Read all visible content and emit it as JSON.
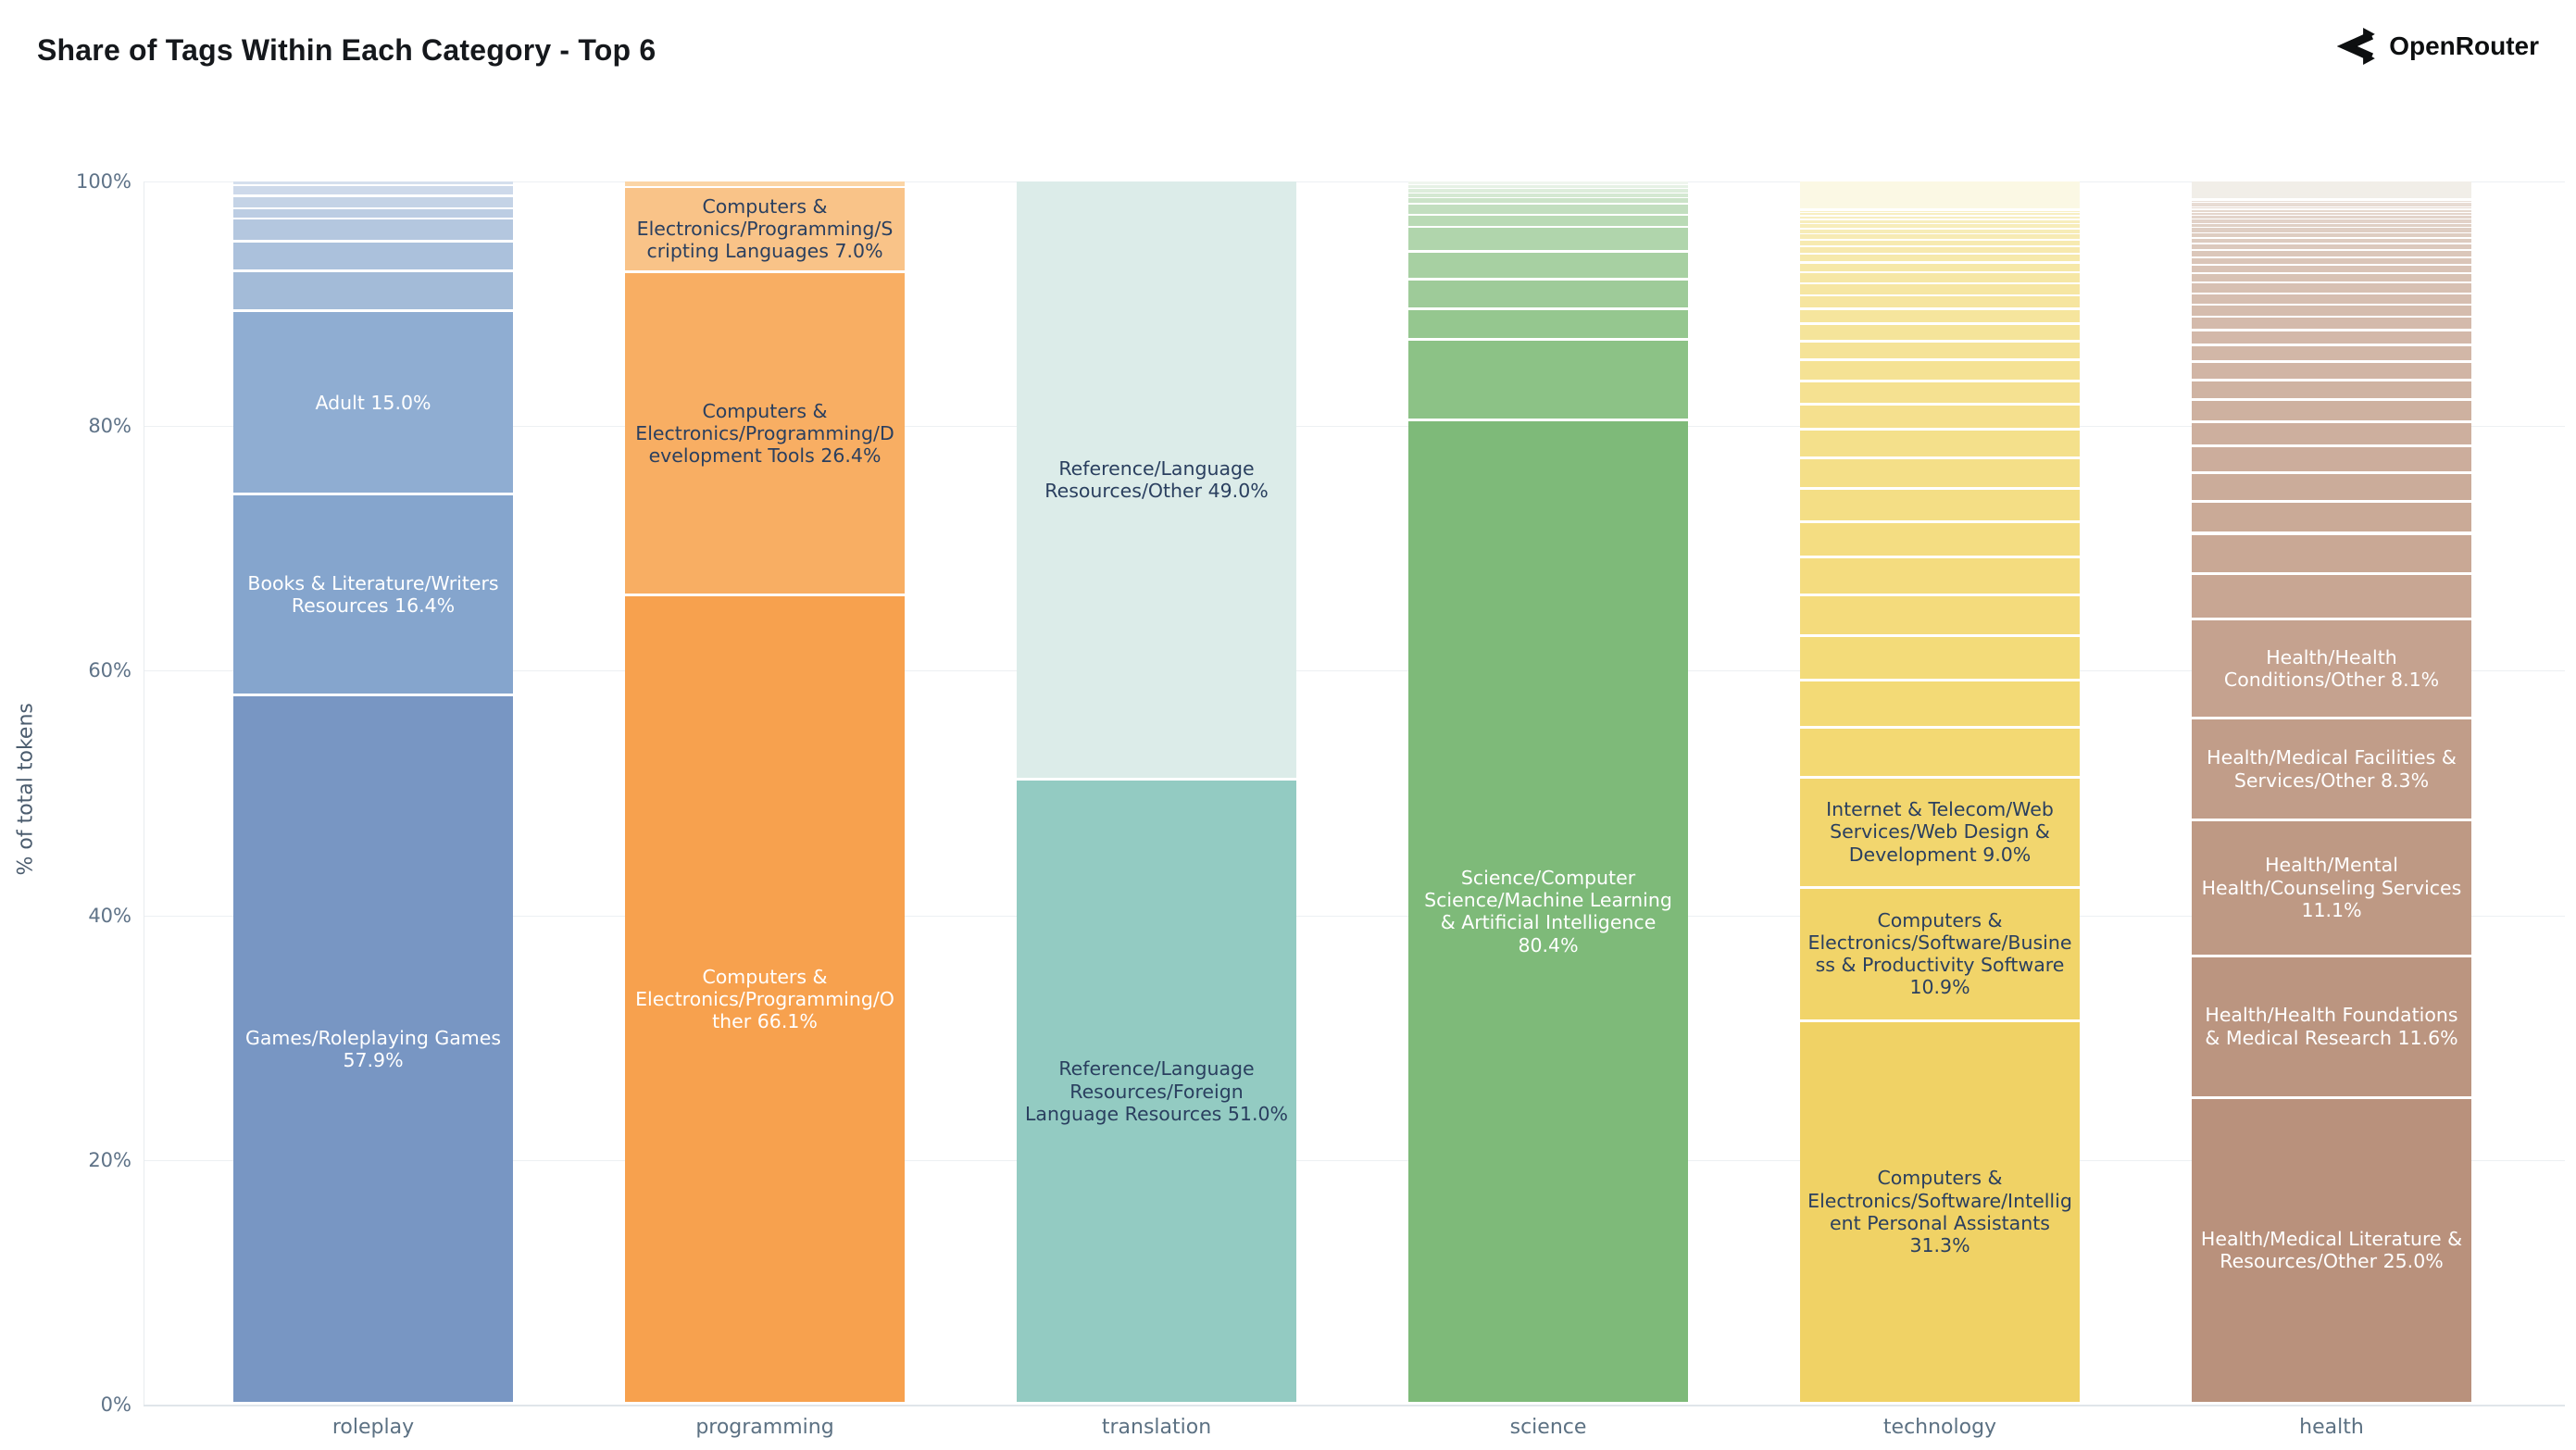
{
  "brand": {
    "name": "OpenRouter",
    "icon": "openrouter-logo"
  },
  "axis_colors": {
    "grid": "#edf0f3",
    "zero_line": "#e0e5ea",
    "tick_text": "#5f7388",
    "category_text": "#5c7183",
    "y_title_text": "#4b5c6e"
  },
  "chart_data": {
    "type": "bar",
    "variant": "stacked-100-percent",
    "title": "Share of Tags Within Each Category - Top 6",
    "xlabel": "",
    "ylabel": "% of total tokens",
    "ylim": [
      0,
      100
    ],
    "grid": true,
    "legend": "none",
    "ytick_values": [
      0,
      20,
      40,
      60,
      80,
      100
    ],
    "ytick_labels": [
      "0%",
      "20%",
      "40%",
      "60%",
      "80%",
      "100%"
    ],
    "categories": [
      "roleplay",
      "programming",
      "translation",
      "science",
      "technology",
      "health"
    ],
    "bars": [
      {
        "category": "roleplay",
        "ramp_top": "#d5dfed",
        "ramp_bottom": "#a3bbd8",
        "segments": [
          {
            "value": 0.35
          },
          {
            "value": 0.9
          },
          {
            "value": 1.05
          },
          {
            "value": 0.8
          },
          {
            "value": 1.9
          },
          {
            "value": 2.4
          },
          {
            "value": 3.3
          },
          {
            "name": "Adult",
            "value": 15.0,
            "label": "Adult 15.0%",
            "color": "#8fadd2",
            "text_color": "#ffffff"
          },
          {
            "name": "Books & Literature/Writers Resources",
            "value": 16.4,
            "label": "Books & Literature/Writers Resources 16.4%",
            "color": "#85a5cd",
            "text_color": "#ffffff"
          },
          {
            "name": "Games/Roleplaying Games",
            "value": 57.9,
            "label": "Games/Roleplaying Games 57.9%",
            "color": "#7896c3",
            "text_color": "#ffffff"
          }
        ]
      },
      {
        "category": "programming",
        "ramp_top": "#fbd5a6",
        "ramp_bottom": "#fbd5a6",
        "segments": [
          {
            "value": 0.5,
            "color": "#fbd5a6"
          },
          {
            "name": "Computers & Electronics/Programming/Scripting Languages",
            "value": 7.0,
            "label": "Computers & Electronics/Programming/Scripting Languages 7.0%",
            "color": "#f9c388",
            "text_color": "#2a3f5f"
          },
          {
            "name": "Computers & Electronics/Programming/Development Tools",
            "value": 26.4,
            "label": "Computers & Electronics/Programming/Development Tools 26.4%",
            "color": "#f8ae63",
            "text_color": "#2a3f5f"
          },
          {
            "name": "Computers & Electronics/Programming/Other",
            "value": 66.1,
            "label": "Computers & Electronics/Programming/Other 66.1%",
            "color": "#f7a14e",
            "text_color": "#ffffff"
          }
        ]
      },
      {
        "category": "translation",
        "ramp_top": "#dcece9",
        "ramp_bottom": "#dcece9",
        "segments": [
          {
            "name": "Reference/Language Resources/Other",
            "value": 49.0,
            "label": "Reference/Language Resources/Other 49.0%",
            "color": "#dcece9",
            "text_color": "#2a3f5f"
          },
          {
            "name": "Reference/Language Resources/Foreign Language Resources",
            "value": 51.0,
            "label": "Reference/Language Resources/Foreign Language Resources 51.0%",
            "color": "#93cbc2",
            "text_color": "#2a3f5f"
          }
        ]
      },
      {
        "category": "science",
        "ramp_top": "#eff6ee",
        "ramp_bottom": "#8cc286",
        "segments": [
          {
            "value": 0.3
          },
          {
            "value": 0.3
          },
          {
            "value": 0.4
          },
          {
            "value": 0.4
          },
          {
            "value": 0.5
          },
          {
            "value": 0.9
          },
          {
            "value": 1.0
          },
          {
            "value": 2.0
          },
          {
            "value": 2.3
          },
          {
            "value": 2.4
          },
          {
            "value": 2.5
          },
          {
            "value": 6.6
          },
          {
            "name": "Science/Computer Science/Machine Learning & Artificial Intelligence",
            "value": 80.4,
            "label": "Science/Computer Science/Machine Learning & Artificial Intelligence 80.4%",
            "color": "#7eba79",
            "text_color": "#ffffff"
          }
        ]
      },
      {
        "category": "technology",
        "ramp_top": "#f8f0c6",
        "ramp_bottom": "#f3d973",
        "segments": [
          {
            "value": 2.4,
            "color": "#fbf8e4"
          },
          {
            "value": 0.2
          },
          {
            "value": 0.25
          },
          {
            "value": 0.3
          },
          {
            "value": 0.35
          },
          {
            "value": 0.4
          },
          {
            "value": 0.45
          },
          {
            "value": 0.5
          },
          {
            "value": 0.55
          },
          {
            "value": 0.6
          },
          {
            "value": 0.7
          },
          {
            "value": 0.8
          },
          {
            "value": 0.9
          },
          {
            "value": 1.0
          },
          {
            "value": 1.1
          },
          {
            "value": 1.25
          },
          {
            "value": 1.4
          },
          {
            "value": 1.55
          },
          {
            "value": 1.7
          },
          {
            "value": 1.9
          },
          {
            "value": 2.1
          },
          {
            "value": 2.3
          },
          {
            "value": 2.5
          },
          {
            "value": 2.7
          },
          {
            "value": 2.9
          },
          {
            "value": 3.1
          },
          {
            "value": 3.35
          },
          {
            "value": 3.6
          },
          {
            "value": 3.9
          },
          {
            "value": 4.05
          },
          {
            "name": "Internet & Telecom/Web Services/Web Design & Development",
            "value": 9.0,
            "label": "Internet & Telecom/Web Services/Web Design & Development 9.0%",
            "color": "#f2d66e",
            "text_color": "#2a3f5f"
          },
          {
            "name": "Computers & Electronics/Software/Business & Productivity Software",
            "value": 10.9,
            "label": "Computers & Electronics/Software/Business & Productivity Software 10.9%",
            "color": "#f1d469",
            "text_color": "#2a3f5f"
          },
          {
            "name": "Computers & Electronics/Software/Intelligent Personal Assistants",
            "value": 31.3,
            "label": "Computers & Electronics/Software/Intelligent Personal Assistants 31.3%",
            "color": "#f0d265",
            "text_color": "#2a3f5f"
          }
        ]
      },
      {
        "category": "health",
        "ramp_top": "#e9dfd7",
        "ramp_bottom": "#c8a693",
        "segments": [
          {
            "value": 1.6,
            "color": "#f1eee8"
          },
          {
            "value": 0.15
          },
          {
            "value": 0.17
          },
          {
            "value": 0.19
          },
          {
            "value": 0.21
          },
          {
            "value": 0.24
          },
          {
            "value": 0.27
          },
          {
            "value": 0.3
          },
          {
            "value": 0.33
          },
          {
            "value": 0.36
          },
          {
            "value": 0.4
          },
          {
            "value": 0.44
          },
          {
            "value": 0.48
          },
          {
            "value": 0.53
          },
          {
            "value": 0.58
          },
          {
            "value": 0.64
          },
          {
            "value": 0.7
          },
          {
            "value": 0.77
          },
          {
            "value": 0.85
          },
          {
            "value": 0.93
          },
          {
            "value": 1.02
          },
          {
            "value": 1.12
          },
          {
            "value": 1.23
          },
          {
            "value": 1.35
          },
          {
            "value": 1.48
          },
          {
            "value": 1.63
          },
          {
            "value": 1.79
          },
          {
            "value": 1.97
          },
          {
            "value": 2.16
          },
          {
            "value": 2.38
          },
          {
            "value": 2.61
          },
          {
            "value": 3.3
          },
          {
            "value": 3.72
          },
          {
            "name": "Health/Health Conditions/Other",
            "value": 8.1,
            "label": "Health/Health Conditions/Other 8.1%",
            "color": "#c5a28f",
            "text_color": "#ffffff"
          },
          {
            "name": "Health/Medical Facilities & Services/Other",
            "value": 8.3,
            "label": "Health/Medical Facilities & Services/Other 8.3%",
            "color": "#c19d89",
            "text_color": "#ffffff"
          },
          {
            "name": "Health/Mental Health/Counseling Services",
            "value": 11.1,
            "label": "Health/Mental Health/Counseling Services 11.1%",
            "color": "#be9984",
            "text_color": "#ffffff"
          },
          {
            "name": "Health/Health Foundations & Medical Research",
            "value": 11.6,
            "label": "Health/Health Foundations & Medical Research 11.6%",
            "color": "#bb9580",
            "text_color": "#ffffff"
          },
          {
            "name": "Health/Medical Literature & Resources/Other",
            "value": 25.0,
            "label": "Health/Medical Literature & Resources/Other 25.0%",
            "color": "#b9917c",
            "text_color": "#ffffff"
          }
        ]
      }
    ]
  }
}
